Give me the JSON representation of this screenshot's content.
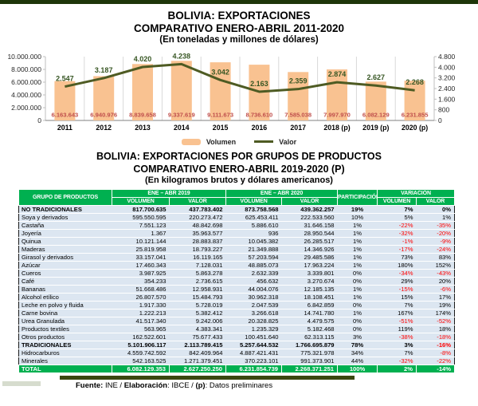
{
  "colors": {
    "top_border": "#1e3609",
    "header_green": "#00b050",
    "row_blue": "#dce6f1",
    "bar_orange": "#f9c291",
    "line_green": "#4e5b23",
    "bar_label_red": "#c0504d",
    "line_label_green": "#375623",
    "negative_red": "#ff0000",
    "footer_bar": "#3a470f"
  },
  "chart_data": [
    {
      "type": "bar",
      "title": "BOLIVIA: EXPORTACIONES",
      "subtitle": "COMPARATIVO ENERO-ABRIL 2011-2020",
      "units": "(En toneladas y millones de dólares)",
      "categories": [
        "2011",
        "2012",
        "2013",
        "2014",
        "2015",
        "2016",
        "2017",
        "2018 (p)",
        "2019 (p)",
        "2020 (p)"
      ],
      "series": [
        {
          "name": "Volumen",
          "type": "bar",
          "axis": "left",
          "color": "#f9c291",
          "values": [
            6163643,
            6940976,
            8839658,
            9337619,
            9111673,
            8736610,
            7585038,
            7997970,
            6082129,
            6231855
          ]
        },
        {
          "name": "Valor",
          "type": "line",
          "axis": "right",
          "color": "#4e5b23",
          "values": [
            2547,
            3187,
            4020,
            4238,
            3042,
            2163,
            2359,
            2874,
            2627,
            2268
          ]
        }
      ],
      "left_axis": {
        "min": 0,
        "max": 10000000,
        "step": 2000000,
        "ticks": [
          "0",
          "2.000.000",
          "4.000.000",
          "6.000.000",
          "8.000.000",
          "10.000.000"
        ]
      },
      "right_axis": {
        "min": 0,
        "max": 4800,
        "step": 800,
        "ticks": [
          "0",
          "800",
          "1.600",
          "2.400",
          "3.200",
          "4.000",
          "4.800"
        ]
      },
      "legend_position": "bottom",
      "grid": "vertical-only"
    },
    {
      "type": "table",
      "title": "BOLIVIA:  EXPORTACIONES POR GRUPOS DE PRODUCTOS",
      "subtitle": "COMPARATIVO ENERO-ABRIL 2019-2020 (P)",
      "units": "(En kilogramos brutos y dólares americanos)",
      "header": {
        "col_product": "GRUPO DE PRODUCTOS",
        "group_2019": "ENE – ABR 2019",
        "group_2020": "ENE – ABR 2020",
        "col_volume": "VOLUMEN",
        "col_value": "VALOR",
        "col_participation": "PARTICIPACIÓN",
        "group_variation": "VARIACIÓN"
      },
      "rows": [
        {
          "name": "NO TRADICIONALES",
          "vol_2019": 817700635,
          "val_2019": 437783402,
          "vol_2020": 873758568,
          "val_2020": 439362257,
          "participacion": "19%",
          "var_volumen": "7%",
          "var_valor": "0%",
          "style": "bold"
        },
        {
          "name": "Soya y derivados",
          "vol_2019": 595550595,
          "val_2019": 220273472,
          "vol_2020": 625453411,
          "val_2020": 222533560,
          "participacion": "10%",
          "var_volumen": "5%",
          "var_valor": "1%"
        },
        {
          "name": "Castaña",
          "vol_2019": 7551123,
          "val_2019": 48842698,
          "vol_2020": 5886610,
          "val_2020": 31646158,
          "participacion": "1%",
          "var_volumen": "-22%",
          "var_valor": "-35%"
        },
        {
          "name": "Joyería",
          "vol_2019": 1367,
          "val_2019": 35963577,
          "vol_2020": 936,
          "val_2020": 28950544,
          "participacion": "1%",
          "var_volumen": "-32%",
          "var_valor": "-20%"
        },
        {
          "name": "Quinua",
          "vol_2019": 10121144,
          "val_2019": 28883837,
          "vol_2020": 10045382,
          "val_2020": 26285517,
          "participacion": "1%",
          "var_volumen": "-1%",
          "var_valor": "-9%"
        },
        {
          "name": "Maderas",
          "vol_2019": 25819958,
          "val_2019": 18793227,
          "vol_2020": 21349888,
          "val_2020": 14346926,
          "participacion": "1%",
          "var_volumen": "-17%",
          "var_valor": "-24%"
        },
        {
          "name": "Girasol y derivados",
          "vol_2019": 33157041,
          "val_2019": 16119165,
          "vol_2020": 57203594,
          "val_2020": 29485586,
          "participacion": "1%",
          "var_volumen": "73%",
          "var_valor": "83%"
        },
        {
          "name": "Azúcar",
          "vol_2019": 17460343,
          "val_2019": 7128031,
          "vol_2020": 48885073,
          "val_2020": 17963224,
          "participacion": "1%",
          "var_volumen": "180%",
          "var_valor": "152%"
        },
        {
          "name": "Cueros",
          "vol_2019": 3987925,
          "val_2019": 5863278,
          "vol_2020": 2632339,
          "val_2020": 3339801,
          "participacion": "0%",
          "var_volumen": "-34%",
          "var_valor": "-43%"
        },
        {
          "name": "Café",
          "vol_2019": 354233,
          "val_2019": 2736615,
          "vol_2020": 456632,
          "val_2020": 3270674,
          "participacion": "0%",
          "var_volumen": "29%",
          "var_valor": "20%"
        },
        {
          "name": "Bananas",
          "vol_2019": 51668486,
          "val_2019": 12958931,
          "vol_2020": 44004076,
          "val_2020": 12185135,
          "participacion": "1%",
          "var_volumen": "-15%",
          "var_valor": "-6%"
        },
        {
          "name": "Alcohol etílico",
          "vol_2019": 26807570,
          "val_2019": 15484793,
          "vol_2020": 30962318,
          "val_2020": 18108451,
          "participacion": "1%",
          "var_volumen": "15%",
          "var_valor": "17%"
        },
        {
          "name": "Leche en polvo y fluida",
          "vol_2019": 1917330,
          "val_2019": 5728019,
          "vol_2020": 2047539,
          "val_2020": 6842859,
          "participacion": "0%",
          "var_volumen": "7%",
          "var_valor": "19%"
        },
        {
          "name": "Carne bovina",
          "vol_2019": 1222213,
          "val_2019": 5382412,
          "vol_2020": 3266618,
          "val_2020": 14741780,
          "participacion": "1%",
          "var_volumen": "167%",
          "var_valor": "174%"
        },
        {
          "name": "Urea Granulada",
          "vol_2019": 41517340,
          "val_2019": 9242006,
          "vol_2020": 20328825,
          "val_2020": 4479575,
          "participacion": "0%",
          "var_volumen": "-51%",
          "var_valor": "-52%"
        },
        {
          "name": "Productos textiles",
          "vol_2019": 563965,
          "val_2019": 4383341,
          "vol_2020": 1235329,
          "val_2020": 5182468,
          "participacion": "0%",
          "var_volumen": "119%",
          "var_valor": "18%"
        },
        {
          "name": "Otros productos",
          "vol_2019": 162522601,
          "val_2019": 75677433,
          "vol_2020": 100451640,
          "val_2020": 62313115,
          "participacion": "3%",
          "var_volumen": "-38%",
          "var_valor": "-18%"
        },
        {
          "name": "TRADICIONALES",
          "vol_2019": 5101906117,
          "val_2019": 2113789415,
          "vol_2020": 5257644532,
          "val_2020": 1766695879,
          "participacion": "78%",
          "var_volumen": "3%",
          "var_valor": "-16%",
          "style": "section"
        },
        {
          "name": "Hidrocarburos",
          "vol_2019": 4559742592,
          "val_2019": 842409964,
          "vol_2020": 4887421431,
          "val_2020": 775321978,
          "participacion": "34%",
          "var_volumen": "7%",
          "var_valor": "-8%"
        },
        {
          "name": "Minerales",
          "vol_2019": 542163525,
          "val_2019": 1271379451,
          "vol_2020": 370223101,
          "val_2020": 991373901,
          "participacion": "44%",
          "var_volumen": "-32%",
          "var_valor": "-22%"
        },
        {
          "name": "TOTAL",
          "vol_2019": 6082129353,
          "val_2019": 2627250250,
          "vol_2020": 6231854739,
          "val_2020": 2268371251,
          "participacion": "100%",
          "var_volumen": "2%",
          "var_valor": "-14%",
          "style": "total"
        }
      ]
    }
  ],
  "footer": {
    "parts": [
      {
        "t": "Fuente:",
        "b": true
      },
      {
        "t": "  INE / ",
        "b": false
      },
      {
        "t": "Elaboración",
        "b": true
      },
      {
        "t": ": IBCE / ",
        "b": false
      },
      {
        "t": "(p)",
        "b": true
      },
      {
        "t": ": Datos preliminares",
        "b": false
      }
    ]
  }
}
